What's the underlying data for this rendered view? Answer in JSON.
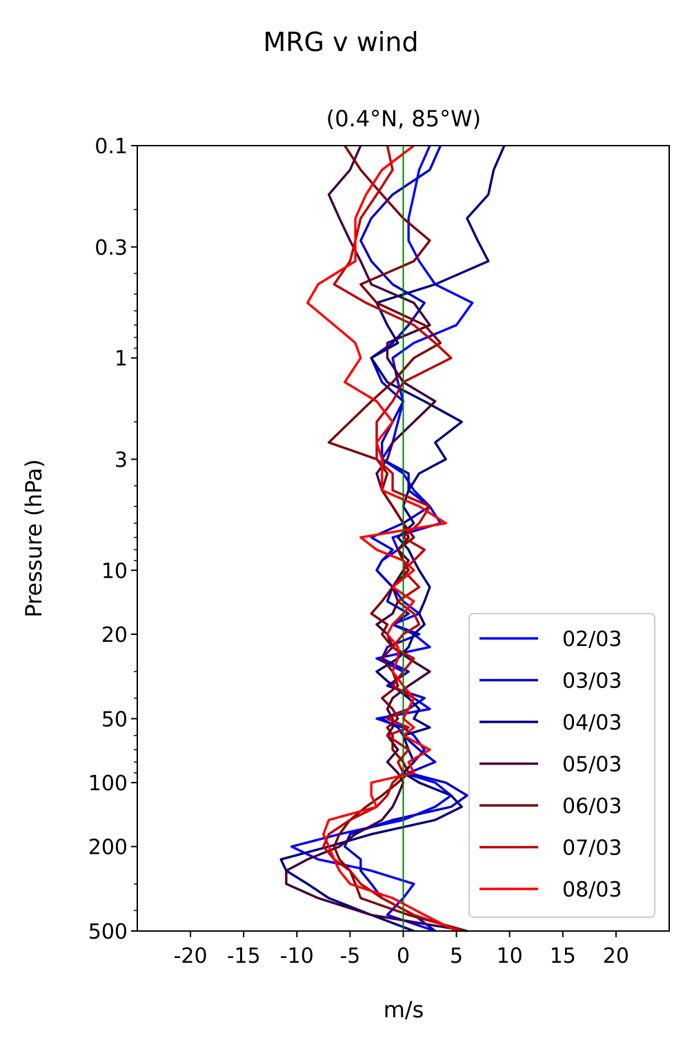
{
  "chart_data": {
    "type": "line",
    "suptitle": "MRG v wind",
    "title": "(0.4°N, 85°W)",
    "xlabel": "m/s",
    "ylabel": "Pressure (hPa)",
    "xlim": [
      -25,
      25
    ],
    "ylim": [
      500,
      0.1
    ],
    "yscale": "log",
    "x_ticks": [
      -20,
      -15,
      -10,
      -5,
      0,
      5,
      10,
      15,
      20
    ],
    "y_ticks": [
      0.1,
      0.3,
      1,
      3,
      10,
      20,
      50,
      100,
      200,
      500
    ],
    "reference_line": {
      "x": 0,
      "color": "#008000"
    },
    "legend_position": "lower-right",
    "pressure_levels": [
      0.1,
      0.13,
      0.17,
      0.22,
      0.28,
      0.35,
      0.45,
      0.55,
      0.7,
      0.85,
      1.0,
      1.3,
      1.6,
      2.0,
      2.5,
      3.0,
      3.5,
      4.2,
      5.0,
      6.0,
      7.0,
      8.0,
      9.0,
      10,
      12,
      14,
      16,
      18,
      20,
      23,
      26,
      30,
      35,
      40,
      45,
      50,
      55,
      60,
      70,
      80,
      90,
      100,
      115,
      130,
      150,
      175,
      200,
      230,
      260,
      300,
      350,
      420,
      500
    ],
    "series": [
      {
        "name": "02/03",
        "color": "#0000ff",
        "values": [
          2.5,
          1.5,
          1.0,
          0.5,
          0.5,
          1.5,
          3.0,
          6.5,
          5.0,
          1.0,
          -1.0,
          -0.5,
          0.0,
          -0.5,
          -1.0,
          -2.0,
          0.0,
          1.0,
          2.5,
          3.5,
          -1.0,
          -0.5,
          -2.0,
          -2.5,
          -1.0,
          0.0,
          1.5,
          -1.0,
          1.0,
          2.5,
          -2.5,
          0.0,
          -1.0,
          1.0,
          2.5,
          -2.5,
          0.0,
          1.0,
          2.0,
          1.0,
          0.0,
          3.0,
          4.5,
          3.0,
          0.0,
          -6.0,
          -10.5,
          -8.0,
          -3.0,
          1.0,
          0.0,
          -1.5,
          3.0
        ]
      },
      {
        "name": "03/03",
        "color": "#0000cc",
        "values": [
          3.5,
          2.5,
          -1.0,
          -3.0,
          -4.0,
          -3.0,
          -1.0,
          2.0,
          0.5,
          -1.0,
          -3.0,
          -2.0,
          0.0,
          -1.0,
          -2.0,
          -2.0,
          0.5,
          0.5,
          2.5,
          0.0,
          -3.0,
          -1.0,
          -2.0,
          -2.5,
          -1.0,
          -1.5,
          0.5,
          -1.0,
          1.5,
          -1.5,
          -2.0,
          0.5,
          -1.5,
          2.0,
          0.5,
          -2.0,
          -0.5,
          0.0,
          1.5,
          3.0,
          0.5,
          4.0,
          6.0,
          4.5,
          -1.0,
          -5.0,
          -5.5,
          -4.0,
          -4.0,
          -3.0,
          -2.0,
          1.0,
          3.0
        ]
      },
      {
        "name": "04/03",
        "color": "#000080",
        "values": [
          9.5,
          8.5,
          8.0,
          6.0,
          7.0,
          8.0,
          3.0,
          -2.5,
          -1.5,
          -0.5,
          -3.0,
          -1.5,
          2.0,
          5.5,
          3.0,
          4.0,
          1.5,
          0.5,
          0.0,
          1.0,
          -0.5,
          0.5,
          1.0,
          1.5,
          2.5,
          2.0,
          1.5,
          2.0,
          1.0,
          0.5,
          -0.5,
          -2.5,
          -1.0,
          0.5,
          1.5,
          1.0,
          2.5,
          0.0,
          0.5,
          1.0,
          0.0,
          1.5,
          4.5,
          5.5,
          3.0,
          -3.0,
          -7.0,
          -11.5,
          -11.0,
          -9.0,
          -7.0,
          -3.0,
          1.0
        ]
      },
      {
        "name": "05/03",
        "color": "#400040",
        "values": [
          -4.0,
          -5.0,
          -7.0,
          -6.0,
          -5.0,
          -4.0,
          -3.0,
          1.0,
          2.5,
          -1.5,
          -1.5,
          0.0,
          3.0,
          1.0,
          -1.0,
          -1.5,
          -2.5,
          -2.0,
          -1.0,
          0.0,
          0.5,
          -0.5,
          0.5,
          0.0,
          -1.0,
          -0.5,
          -1.0,
          -2.5,
          -1.5,
          -1.0,
          0.5,
          2.5,
          0.5,
          -1.0,
          -1.5,
          -1.0,
          -1.0,
          -1.5,
          -0.5,
          -1.5,
          -0.5,
          0.0,
          -0.5,
          -1.0,
          -2.0,
          -4.5,
          -6.0,
          -9.0,
          -11.0,
          -11.0,
          -8.0,
          -3.0,
          6.0
        ]
      },
      {
        "name": "06/03",
        "color": "#800000",
        "values": [
          -5.5,
          -4.0,
          -2.0,
          0.0,
          2.5,
          1.0,
          -4.0,
          -2.5,
          2.0,
          3.5,
          1.0,
          -1.0,
          -3.0,
          -5.0,
          -7.0,
          -2.5,
          -1.5,
          -2.0,
          -1.0,
          0.0,
          1.0,
          -0.5,
          0.0,
          0.5,
          -1.0,
          -2.0,
          -3.0,
          -1.5,
          -2.0,
          -1.0,
          -2.0,
          -1.0,
          -0.5,
          -2.0,
          -1.0,
          -0.5,
          -1.5,
          -1.0,
          -1.0,
          0.0,
          0.5,
          -0.5,
          -2.0,
          -3.5,
          -5.0,
          -6.0,
          -6.5,
          -6.0,
          -5.0,
          -4.5,
          -4.0,
          0.5,
          6.0
        ]
      },
      {
        "name": "07/03",
        "color": "#c00000",
        "values": [
          -1.5,
          -1.0,
          -2.5,
          -4.0,
          -4.5,
          -5.0,
          -6.5,
          -3.5,
          1.0,
          3.0,
          4.5,
          0.0,
          -1.0,
          -2.5,
          -2.5,
          -2.5,
          -1.0,
          -1.0,
          2.5,
          1.5,
          0.0,
          2.0,
          1.0,
          0.0,
          1.5,
          -0.5,
          1.0,
          1.5,
          0.0,
          -1.0,
          1.0,
          0.0,
          -1.0,
          1.0,
          0.5,
          -1.5,
          0.5,
          -1.5,
          0.5,
          -0.5,
          0.0,
          -1.0,
          -1.5,
          -2.5,
          -5.0,
          -7.0,
          -7.5,
          -6.5,
          -5.0,
          -4.0,
          -2.0,
          1.0,
          5.5
        ]
      },
      {
        "name": "08/03",
        "color": "#ff0000",
        "values": [
          1.0,
          -2.0,
          -3.5,
          -4.5,
          -4.5,
          -4.5,
          -8.0,
          -9.0,
          -6.5,
          -4.5,
          -4.0,
          -5.5,
          -2.5,
          -1.0,
          -2.5,
          -2.0,
          -2.0,
          -2.0,
          1.5,
          4.0,
          -4.0,
          -2.5,
          0.0,
          1.0,
          -1.0,
          1.0,
          0.0,
          -1.0,
          -1.5,
          -0.5,
          -0.5,
          -1.0,
          0.0,
          1.0,
          0.5,
          0.0,
          1.0,
          0.0,
          2.5,
          0.5,
          1.0,
          -3.0,
          -3.0,
          -2.5,
          -7.0,
          -7.5,
          -7.0,
          -6.5,
          -6.0,
          -5.0,
          -1.0,
          2.0,
          5.0
        ]
      }
    ]
  }
}
